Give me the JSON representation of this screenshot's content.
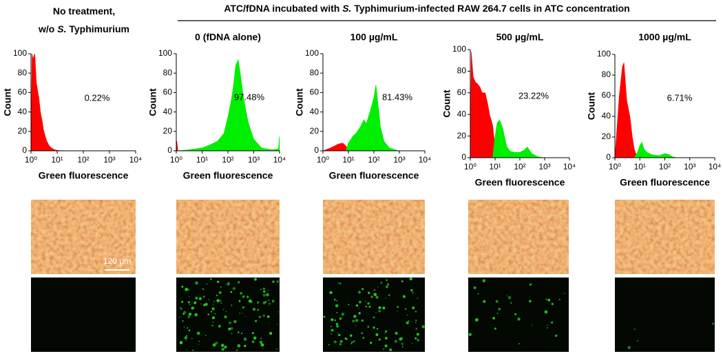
{
  "header": {
    "left_title": [
      "No treatment,",
      "w/o ",
      "S.",
      " Typhimurium"
    ],
    "group_title": [
      "ATC/fDNA incubated with ",
      "S.",
      " Typhimurium-infected RAW 264.7 cells in ATC concentration"
    ],
    "scale_bar": "120 µm"
  },
  "chart_data": [
    {
      "type": "area",
      "xlabel": "Green fluorescence",
      "ylabel": "Count",
      "xscale": "log",
      "xlim": [
        1,
        10000
      ],
      "xticks": [
        {
          "value": 1,
          "label": "10⁰"
        },
        {
          "value": 10,
          "label": "10¹"
        },
        {
          "value": 100,
          "label": "10²"
        },
        {
          "value": 1000,
          "label": "10³"
        },
        {
          "value": 10000,
          "label": "10⁴"
        }
      ],
      "ylim": [
        0,
        100
      ],
      "yticks": [
        0,
        20,
        40,
        60,
        80,
        100
      ],
      "annotation": "0.22%",
      "series": [
        {
          "color": "#ff0000",
          "x": [
            1,
            1.1,
            1.2,
            1.4,
            1.6,
            1.8,
            2,
            2.3,
            2.7,
            3,
            3.5,
            4,
            5,
            6,
            8,
            10,
            15,
            20
          ],
          "values": [
            0,
            100,
            95,
            100,
            70,
            62,
            55,
            40,
            30,
            22,
            15,
            10,
            5,
            3,
            1,
            0.5,
            0.2,
            0
          ]
        }
      ]
    },
    {
      "type": "area",
      "title": "0 (fDNA alone)",
      "xlabel": "Green fluorescence",
      "ylabel": "Count",
      "xscale": "log",
      "xlim": [
        1,
        10000
      ],
      "xticks": [
        {
          "value": 1,
          "label": "10⁰"
        },
        {
          "value": 10,
          "label": "10¹"
        },
        {
          "value": 100,
          "label": "10²"
        },
        {
          "value": 1000,
          "label": "10³"
        },
        {
          "value": 10000,
          "label": "10⁴"
        }
      ],
      "ylim": [
        0,
        100
      ],
      "yticks": [
        0,
        20,
        40,
        60,
        80,
        100
      ],
      "annotation": "97.48%",
      "series": [
        {
          "color": "#ff0000",
          "x": [
            1,
            1.05,
            1.15
          ],
          "values": [
            0,
            10,
            0
          ]
        },
        {
          "color": "#00ee00",
          "x": [
            1,
            3,
            10,
            20,
            40,
            70,
            100,
            130,
            160,
            200,
            250,
            300,
            400,
            600,
            1000,
            2000,
            5000,
            9000,
            9800,
            10000
          ],
          "values": [
            0,
            1,
            3,
            6,
            10,
            18,
            35,
            50,
            65,
            88,
            94,
            80,
            55,
            30,
            12,
            3,
            1,
            2,
            15,
            0
          ]
        }
      ]
    },
    {
      "type": "area",
      "title": "100 µg/mL",
      "xlabel": "Green fluorescence",
      "ylabel": "Count",
      "xscale": "log",
      "xlim": [
        1,
        10000
      ],
      "xticks": [
        {
          "value": 1,
          "label": "10⁰"
        },
        {
          "value": 10,
          "label": "10¹"
        },
        {
          "value": 100,
          "label": "10²"
        },
        {
          "value": 1000,
          "label": "10³"
        },
        {
          "value": 10000,
          "label": "10⁴"
        }
      ],
      "ylim": [
        0,
        100
      ],
      "yticks": [
        0,
        20,
        40,
        60,
        80,
        100
      ],
      "annotation": "81.43%",
      "series": [
        {
          "color": "#ff0000",
          "x": [
            1,
            2,
            4,
            6,
            8,
            10
          ],
          "values": [
            0,
            3,
            7,
            8,
            5,
            0
          ]
        },
        {
          "color": "#00ee00",
          "x": [
            8,
            10,
            15,
            20,
            30,
            40,
            50,
            70,
            100,
            120,
            150,
            180,
            250,
            400,
            700,
            1000
          ],
          "values": [
            0,
            8,
            15,
            18,
            25,
            32,
            28,
            40,
            55,
            68,
            45,
            25,
            10,
            3,
            1,
            0
          ]
        }
      ]
    },
    {
      "type": "area",
      "title": "500 µg/mL",
      "xlabel": "Green fluorescence",
      "ylabel": "Count",
      "xscale": "log",
      "xlim": [
        1,
        10000
      ],
      "xticks": [
        {
          "value": 1,
          "label": "10⁰"
        },
        {
          "value": 10,
          "label": "10¹"
        },
        {
          "value": 100,
          "label": "10²"
        },
        {
          "value": 1000,
          "label": "10³"
        },
        {
          "value": 10000,
          "label": "10⁴"
        }
      ],
      "ylim": [
        0,
        100
      ],
      "yticks": [
        0,
        20,
        40,
        60,
        80,
        100
      ],
      "annotation": "23.22%",
      "series": [
        {
          "color": "#ff0000",
          "x": [
            1,
            1.1,
            1.3,
            1.6,
            2,
            2.5,
            3,
            4,
            5,
            6,
            8,
            10,
            12
          ],
          "values": [
            0,
            98,
            75,
            70,
            68,
            65,
            60,
            60,
            50,
            40,
            30,
            10,
            0
          ]
        },
        {
          "color": "#00ee00",
          "x": [
            8,
            10,
            12,
            15,
            20,
            25,
            30,
            40,
            60,
            100,
            150,
            200,
            300,
            500,
            1000
          ],
          "values": [
            0,
            20,
            32,
            35,
            28,
            18,
            10,
            6,
            5,
            5,
            7,
            10,
            4,
            1,
            0
          ]
        }
      ]
    },
    {
      "type": "area",
      "title": "1000 µg/mL",
      "xlabel": "Green fluorescence",
      "ylabel": "Count",
      "xscale": "log",
      "xlim": [
        1,
        10000
      ],
      "xticks": [
        {
          "value": 1,
          "label": "10⁰"
        },
        {
          "value": 10,
          "label": "10¹"
        },
        {
          "value": 100,
          "label": "10²"
        },
        {
          "value": 1000,
          "label": "10³"
        },
        {
          "value": 10000,
          "label": "10⁴"
        }
      ],
      "ylim": [
        0,
        100
      ],
      "yticks": [
        0,
        20,
        40,
        60,
        80,
        100
      ],
      "annotation": "6.71%",
      "series": [
        {
          "color": "#ff0000",
          "x": [
            1,
            1.5,
            2,
            2.3,
            2.7,
            3,
            4,
            5,
            6,
            8
          ],
          "values": [
            0,
            60,
            88,
            92,
            70,
            55,
            40,
            20,
            8,
            0
          ]
        },
        {
          "color": "#00ee00",
          "x": [
            6,
            8,
            10,
            12,
            15,
            20,
            30,
            60,
            100,
            150,
            200,
            300
          ],
          "values": [
            0,
            5,
            12,
            15,
            8,
            5,
            3,
            2,
            4,
            3,
            1,
            0
          ]
        }
      ]
    }
  ]
}
